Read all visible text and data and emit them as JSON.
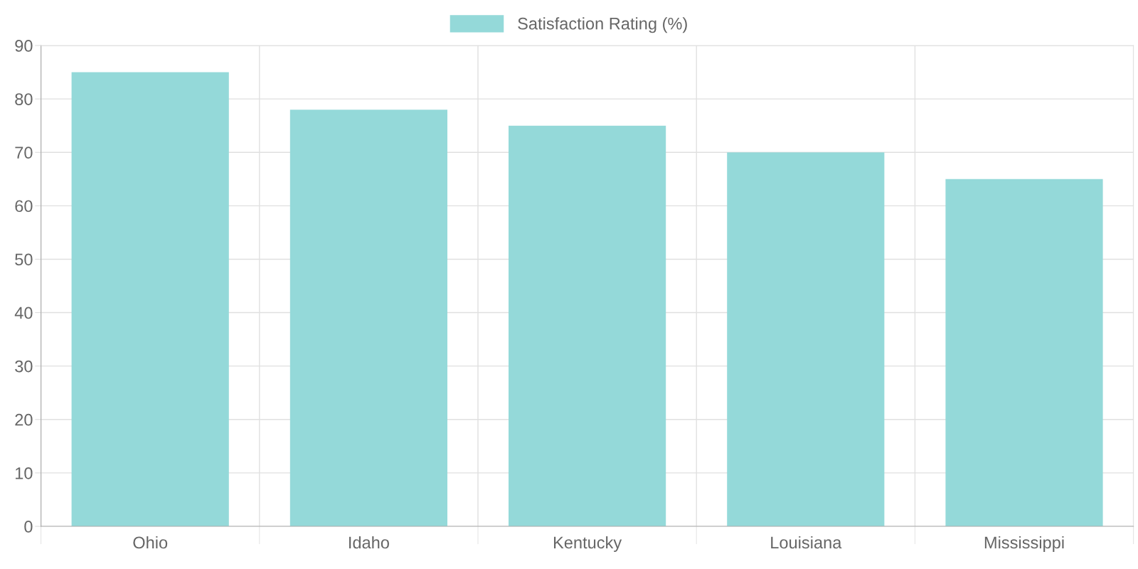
{
  "chart_data": {
    "type": "bar",
    "categories": [
      "Ohio",
      "Idaho",
      "Kentucky",
      "Louisiana",
      "Mississippi"
    ],
    "series": [
      {
        "name": "Satisfaction Rating (%)",
        "color": "#94d9d9",
        "values": [
          85,
          78,
          75,
          70,
          65
        ]
      }
    ],
    "ylim": [
      0,
      90
    ],
    "yticks": [
      0,
      10,
      20,
      30,
      40,
      50,
      60,
      70,
      80,
      90
    ],
    "grid": true,
    "legend": "top"
  }
}
